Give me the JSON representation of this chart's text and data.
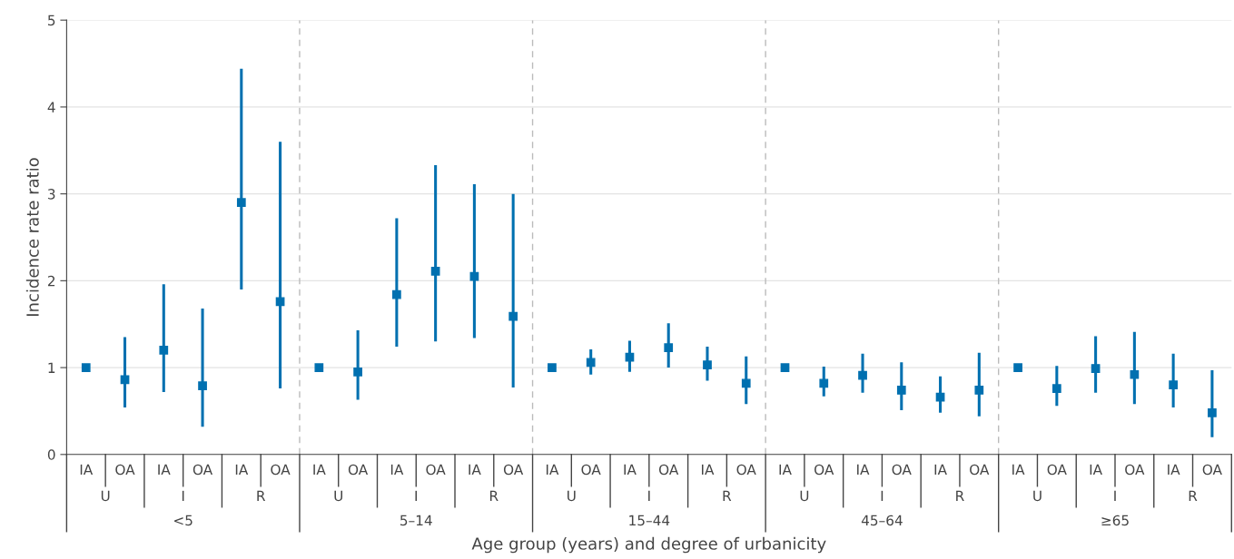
{
  "chart_data": {
    "type": "scatter",
    "ylabel": "Incidence rate ratio",
    "xlabel": "Age group (years) and degree of urbanicity",
    "categories": [
      "IA",
      "OA",
      "IA",
      "OA",
      "IA",
      "OA",
      "IA",
      "OA",
      "IA",
      "OA",
      "IA",
      "OA",
      "IA",
      "OA",
      "IA",
      "OA",
      "IA",
      "OA",
      "IA",
      "OA",
      "IA",
      "OA",
      "IA",
      "OA",
      "IA",
      "OA",
      "IA",
      "OA",
      "IA",
      "OA"
    ],
    "annotations": [
      "U",
      "I",
      "R",
      "U",
      "I",
      "R",
      "U",
      "I",
      "R",
      "U",
      "I",
      "R",
      "U",
      "I",
      "R",
      "<5",
      "5–14",
      "15–44",
      "45–64",
      "≥65"
    ],
    "series": [
      {
        "color": "#0070b0",
        "values": [
          1.0,
          0.86,
          1.2,
          0.79,
          2.9,
          1.76,
          1.0,
          0.95,
          1.84,
          2.11,
          2.05,
          1.59,
          1.0,
          1.06,
          1.12,
          1.23,
          1.03,
          0.82,
          1.0,
          0.82,
          0.91,
          0.74,
          0.66,
          0.74,
          1.0,
          0.76,
          0.99,
          0.92,
          0.8,
          0.48
        ],
        "errors": [
          null,
          [
            0.54,
            1.35
          ],
          [
            0.72,
            1.96
          ],
          [
            0.32,
            1.68
          ],
          [
            1.9,
            4.44
          ],
          [
            0.76,
            3.6
          ],
          null,
          [
            0.63,
            1.43
          ],
          [
            1.24,
            2.72
          ],
          [
            1.3,
            3.33
          ],
          [
            1.34,
            3.11
          ],
          [
            0.77,
            3.0
          ],
          null,
          [
            0.92,
            1.21
          ],
          [
            0.95,
            1.31
          ],
          [
            1.0,
            1.51
          ],
          [
            0.85,
            1.24
          ],
          [
            0.58,
            1.13
          ],
          null,
          [
            0.67,
            1.01
          ],
          [
            0.71,
            1.16
          ],
          [
            0.51,
            1.06
          ],
          [
            0.48,
            0.9
          ],
          [
            0.44,
            1.17
          ],
          null,
          [
            0.56,
            1.02
          ],
          [
            0.71,
            1.36
          ],
          [
            0.58,
            1.41
          ],
          [
            0.54,
            1.16
          ],
          [
            0.2,
            0.97
          ]
        ]
      }
    ],
    "ylim": [
      0,
      5
    ],
    "yticks": [
      0,
      1,
      2,
      3,
      4,
      5
    ],
    "grid": "y",
    "marker": "square"
  }
}
